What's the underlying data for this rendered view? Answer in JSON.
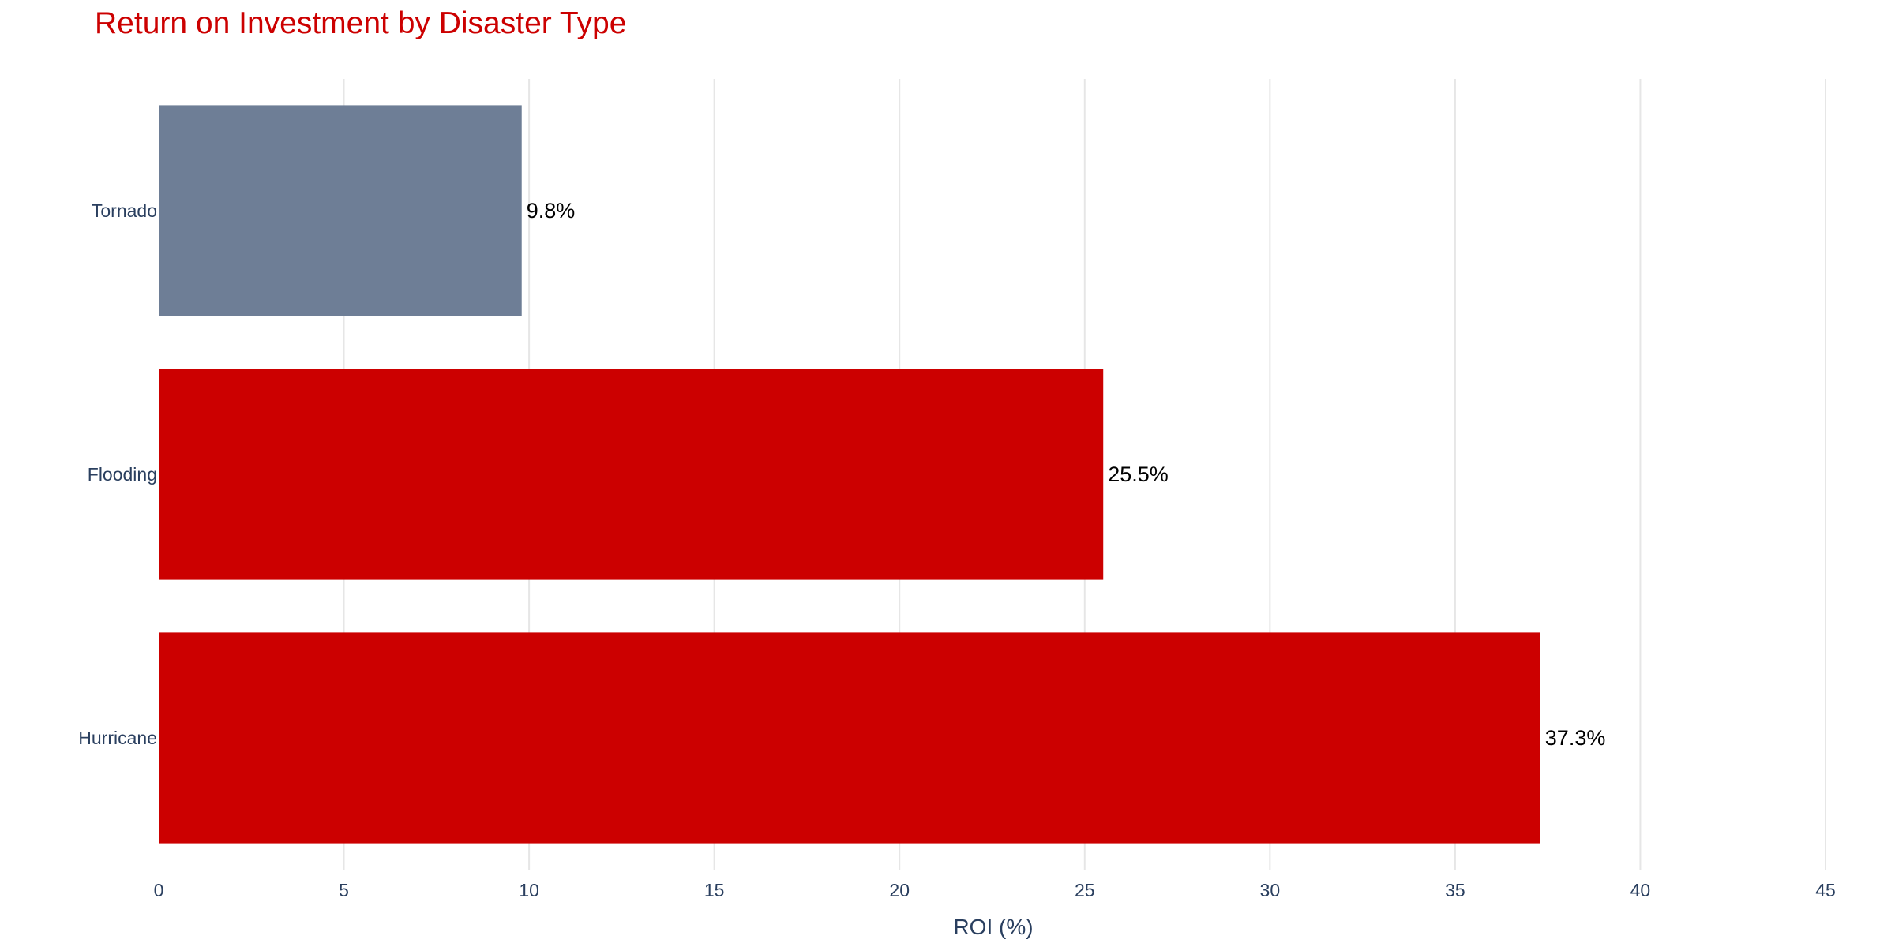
{
  "chart_data": {
    "type": "bar",
    "orientation": "horizontal",
    "title": "Return on Investment by Disaster Type",
    "xlabel": "ROI (%)",
    "ylabel": "",
    "categories": [
      "Hurricane",
      "Flooding",
      "Tornado"
    ],
    "values": [
      37.3,
      25.5,
      9.8
    ],
    "data_labels": [
      "37.3%",
      "25.5%",
      "9.8%"
    ],
    "bar_colors": [
      "#cc0000",
      "#cc0000",
      "#6e7e96"
    ],
    "xlim": [
      0,
      45
    ],
    "xticks": [
      0,
      5,
      10,
      15,
      20,
      25,
      30,
      35,
      40,
      45
    ],
    "grid": true,
    "legend": "none"
  },
  "colors": {
    "title": "#cc0000",
    "axis_text": "#2a3f5f",
    "grid": "#e6e6e6",
    "data_label": "#000000"
  }
}
